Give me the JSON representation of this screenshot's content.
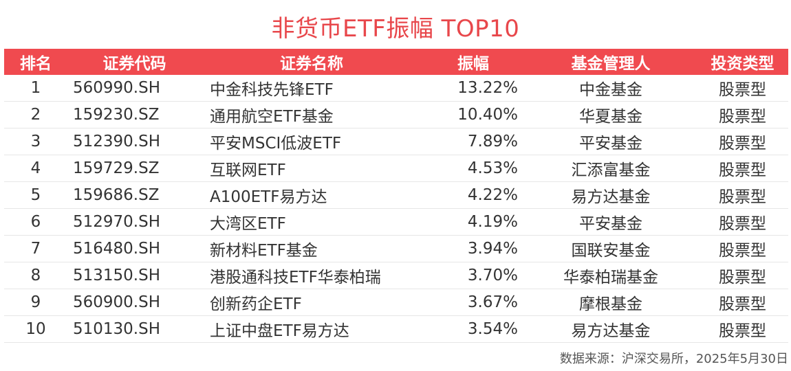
{
  "title": "非货币ETF振幅 TOP10",
  "table": {
    "headers": [
      "排名",
      "证券代码",
      "证券名称",
      "振幅",
      "基金管理人",
      "投资类型"
    ],
    "rows": [
      {
        "rank": "1",
        "code": "560990.SH",
        "name": "中金科技先锋ETF",
        "amplitude": "13.22%",
        "manager": "中金基金",
        "type": "股票型"
      },
      {
        "rank": "2",
        "code": "159230.SZ",
        "name": "通用航空ETF基金",
        "amplitude": "10.40%",
        "manager": "华夏基金",
        "type": "股票型"
      },
      {
        "rank": "3",
        "code": "512390.SH",
        "name": "平安MSCI低波ETF",
        "amplitude": "7.89%",
        "manager": "平安基金",
        "type": "股票型"
      },
      {
        "rank": "4",
        "code": "159729.SZ",
        "name": "互联网ETF",
        "amplitude": "4.53%",
        "manager": "汇添富基金",
        "type": "股票型"
      },
      {
        "rank": "5",
        "code": "159686.SZ",
        "name": "A100ETF易方达",
        "amplitude": "4.22%",
        "manager": "易方达基金",
        "type": "股票型"
      },
      {
        "rank": "6",
        "code": "512970.SH",
        "name": "大湾区ETF",
        "amplitude": "4.19%",
        "manager": "平安基金",
        "type": "股票型"
      },
      {
        "rank": "7",
        "code": "516480.SH",
        "name": "新材料ETF基金",
        "amplitude": "3.94%",
        "manager": "国联安基金",
        "type": "股票型"
      },
      {
        "rank": "8",
        "code": "513150.SH",
        "name": "港股通科技ETF华泰柏瑞",
        "amplitude": "3.70%",
        "manager": "华泰柏瑞基金",
        "type": "股票型"
      },
      {
        "rank": "9",
        "code": "560900.SH",
        "name": "创新药企ETF",
        "amplitude": "3.67%",
        "manager": "摩根基金",
        "type": "股票型"
      },
      {
        "rank": "10",
        "code": "510130.SH",
        "name": "上证中盘ETF易方达",
        "amplitude": "3.54%",
        "manager": "易方达基金",
        "type": "股票型"
      }
    ]
  },
  "source": "数据来源：沪深交易所，2025年5月30日",
  "colors": {
    "title": "#e8474b",
    "header_bg": "#f04a4f",
    "header_text": "#ffffff"
  }
}
